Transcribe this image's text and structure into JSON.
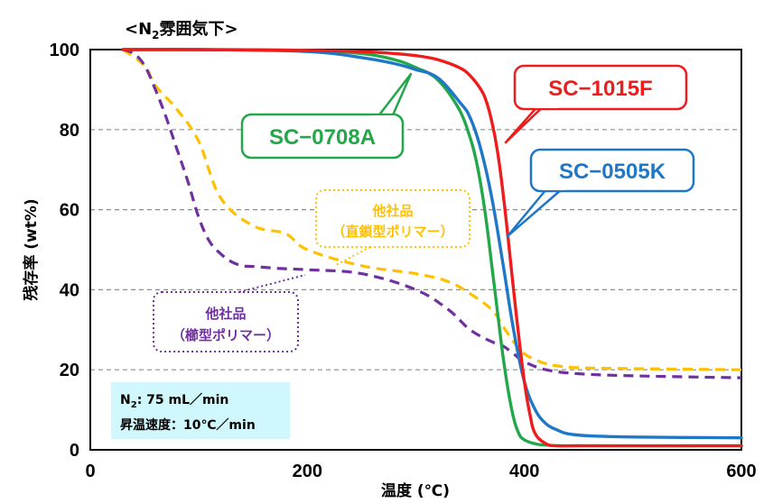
{
  "chart_data": {
    "type": "line",
    "title": "<N₂雰囲気下>",
    "title_main": "<N",
    "title_sub": "2",
    "title_tail": "雰囲気下>",
    "xlabel": "温度 (℃)",
    "ylabel": "残存率 (wt%)",
    "xlim": [
      0,
      600
    ],
    "ylim": [
      0,
      100
    ],
    "xticks": [
      0,
      200,
      400,
      600
    ],
    "yticks": [
      0,
      20,
      40,
      60,
      80,
      100
    ],
    "grid": "horizontal-dashed",
    "series": [
      {
        "name": "SC-1015F",
        "color": "#ee1c1c",
        "style": "solid",
        "x": [
          30,
          100,
          200,
          250,
          280,
          300,
          320,
          340,
          350,
          360,
          365,
          370,
          375,
          380,
          385,
          390,
          395,
          400,
          405,
          410,
          420,
          430,
          450,
          500,
          600
        ],
        "y": [
          100,
          100,
          99.8,
          99.5,
          99,
          98.5,
          97.5,
          95.5,
          93.5,
          90,
          87,
          82,
          75,
          65,
          53,
          40,
          28,
          17,
          9,
          4,
          1.5,
          1,
          1,
          1,
          1
        ]
      },
      {
        "name": "SC-0505K",
        "color": "#1f77c8",
        "style": "solid",
        "x": [
          30,
          100,
          200,
          250,
          280,
          300,
          320,
          340,
          350,
          360,
          370,
          380,
          390,
          400,
          410,
          420,
          430,
          440,
          460,
          500,
          600
        ],
        "y": [
          100,
          100,
          99.5,
          98,
          96.5,
          95,
          93,
          87,
          83,
          75,
          63,
          47,
          30,
          17,
          10,
          6.5,
          5,
          4,
          3.5,
          3.2,
          3
        ]
      },
      {
        "name": "SC-0708A",
        "color": "#22a84a",
        "style": "solid",
        "x": [
          30,
          100,
          200,
          250,
          280,
          300,
          320,
          340,
          350,
          355,
          360,
          365,
          370,
          375,
          380,
          385,
          390,
          395,
          400,
          410,
          420,
          450,
          600
        ],
        "y": [
          100,
          100,
          99.8,
          99,
          97.5,
          95.5,
          92.5,
          85,
          78,
          73,
          66,
          57,
          46,
          35,
          24,
          15,
          8,
          4,
          2.5,
          1.5,
          1.2,
          1,
          1
        ]
      },
      {
        "name": "他社品（直鎖型ポリマー）",
        "color": "#ffc000",
        "style": "dashed",
        "x": [
          30,
          50,
          60,
          80,
          100,
          120,
          150,
          180,
          200,
          250,
          300,
          330,
          350,
          370,
          380,
          390,
          400,
          410,
          420,
          430,
          450,
          500,
          600
        ],
        "y": [
          100,
          96,
          91,
          85,
          77,
          63,
          56,
          54,
          50,
          46,
          44,
          42,
          39,
          35,
          31,
          27,
          24,
          22.5,
          21.5,
          21,
          20.5,
          20.3,
          20
        ]
      },
      {
        "name": "他社品（櫛型ポリマー）",
        "color": "#7030a0",
        "style": "dashed",
        "x": [
          30,
          40,
          50,
          60,
          70,
          80,
          90,
          100,
          110,
          120,
          130,
          140,
          150,
          175,
          200,
          250,
          300,
          330,
          350,
          370,
          380,
          390,
          400,
          420,
          450,
          500,
          600
        ],
        "y": [
          100,
          99,
          96,
          90,
          83,
          75,
          67,
          58,
          52,
          49,
          47,
          46,
          45.8,
          45.3,
          45,
          44,
          40,
          35,
          30,
          27,
          26,
          24,
          22,
          20,
          19,
          18.5,
          18
        ]
      }
    ],
    "callouts": {
      "sc1015f": "SC−1015F",
      "sc0505k": "SC−0505K",
      "sc0708a": "SC−0708A",
      "linear_line1": "他社品",
      "linear_line2": "（直鎖型ポリマー）",
      "comb_line1": "他社品",
      "comb_line2": "（櫛型ポリマー）"
    },
    "conditions": {
      "flow_prefix": "N",
      "flow_sub": "2",
      "flow_rest": ": 75 mL／min",
      "rate": "昇温速度：10℃／min"
    },
    "colors": {
      "red": "#ee1c1c",
      "blue": "#1f77c8",
      "green": "#22a84a",
      "yellow": "#ffc000",
      "purple": "#7030a0",
      "grid": "#8c8c8c",
      "conditions_bg": "#cff7fc"
    }
  }
}
